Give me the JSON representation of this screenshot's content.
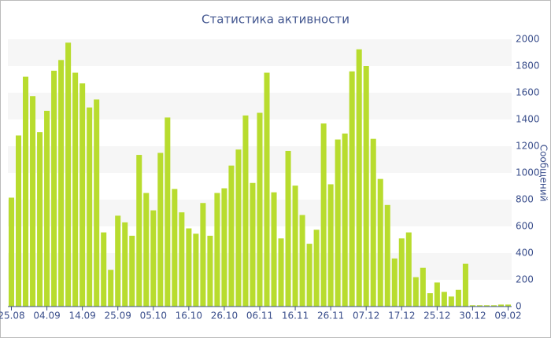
{
  "chart_data": {
    "type": "bar",
    "title": "Статистика активности",
    "y_label": "Сообщений",
    "categories": [
      "25.08",
      null,
      null,
      null,
      null,
      "04.09",
      null,
      null,
      null,
      null,
      "14.09",
      null,
      null,
      null,
      null,
      "25.09",
      null,
      null,
      null,
      null,
      "05.10",
      null,
      null,
      null,
      null,
      "16.10",
      null,
      null,
      null,
      null,
      "26.10",
      null,
      null,
      null,
      null,
      "06.11",
      null,
      null,
      null,
      null,
      "16.11",
      null,
      null,
      null,
      null,
      "26.11",
      null,
      null,
      null,
      null,
      "07.12",
      null,
      null,
      null,
      null,
      "17.12",
      null,
      null,
      null,
      null,
      "25.12",
      null,
      null,
      null,
      null,
      "30.12",
      null,
      null,
      null,
      null,
      "09.02"
    ],
    "values": [
      815,
      1280,
      1720,
      1575,
      1305,
      1465,
      1765,
      1845,
      1975,
      1750,
      1670,
      1490,
      1550,
      555,
      275,
      680,
      630,
      530,
      1135,
      850,
      720,
      1150,
      1415,
      880,
      705,
      585,
      545,
      775,
      530,
      850,
      885,
      1055,
      1175,
      1430,
      925,
      1450,
      1750,
      855,
      510,
      1165,
      905,
      685,
      470,
      575,
      1370,
      915,
      1250,
      1295,
      1760,
      1925,
      1800,
      1255,
      955,
      760,
      360,
      510,
      555,
      220,
      290,
      100,
      180,
      110,
      75,
      125,
      320,
      10,
      10,
      10,
      10,
      15,
      15
    ],
    "color": "#b8dc2e",
    "ylim": [
      0,
      2000
    ],
    "yticks": [
      0,
      200,
      400,
      600,
      800,
      1000,
      1200,
      1400,
      1600,
      1800,
      2000
    ],
    "grid": true
  }
}
